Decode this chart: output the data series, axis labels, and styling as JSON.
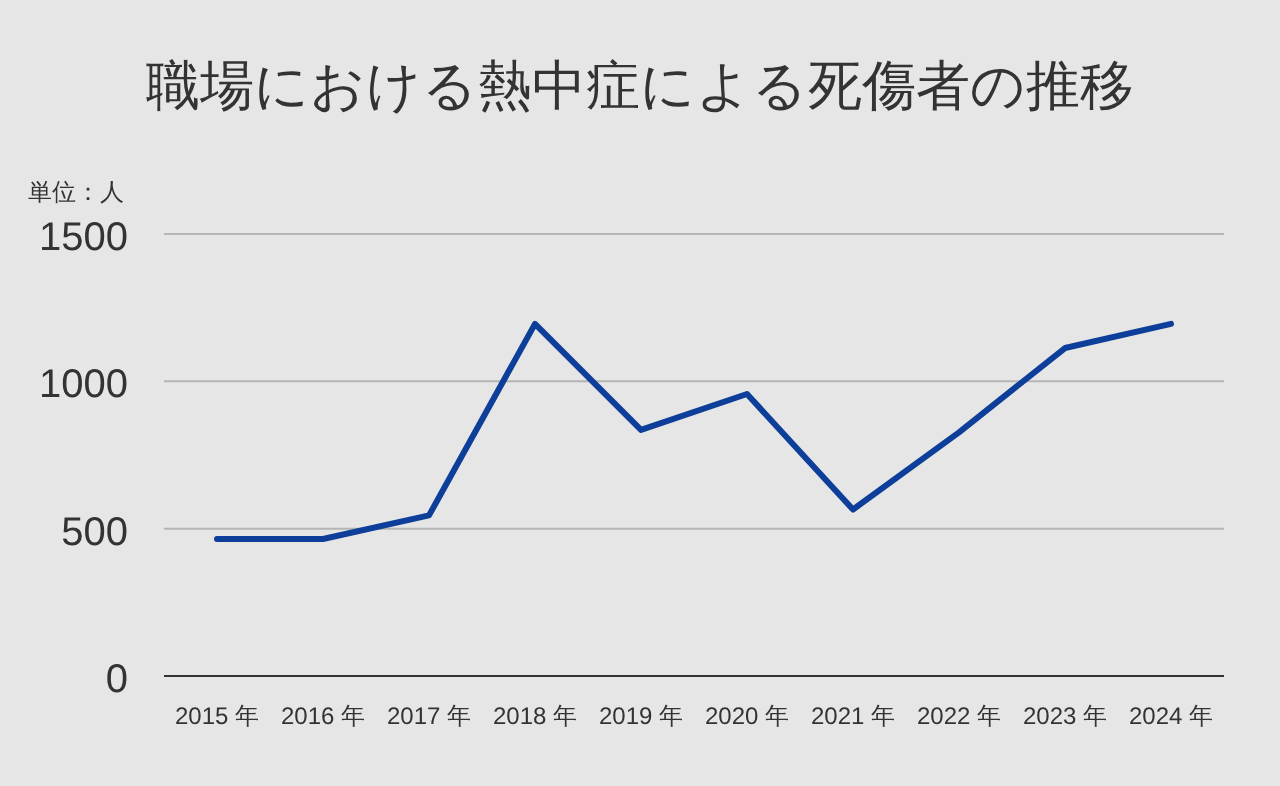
{
  "chart_data": {
    "type": "line",
    "title": "職場における熱中症による死傷者の推移",
    "ylabel": "単位：人",
    "categories": [
      "2015 年",
      "2016 年",
      "2017 年",
      "2018 年",
      "2019 年",
      "2020 年",
      "2021 年",
      "2022 年",
      "2023 年",
      "2024 年"
    ],
    "series": [
      {
        "color": "#0d3f9a",
        "values": [
          465,
          465,
          545,
          1195,
          835,
          957,
          565,
          827,
          1113,
          1195
        ]
      }
    ],
    "ylim": [
      0,
      1500
    ],
    "yticks": [
      0,
      500,
      1000,
      1500
    ],
    "grid": "y",
    "marker": "none",
    "line_style": "solid"
  }
}
